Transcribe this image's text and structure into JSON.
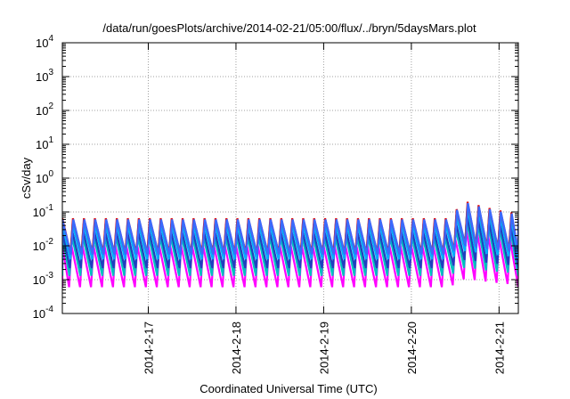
{
  "chart_data": {
    "type": "line",
    "title": "/data/run/goesPlots/archive/2014-02-21/05:00/flux/../bryn/5daysMars.plot",
    "xlabel": "Coordinated Universal Time (UTC)",
    "ylabel": "cSv/day",
    "x_tick_labels": [
      "2014-2-17",
      "2014-2-18",
      "2014-2-19",
      "2014-2-20",
      "2014-2-21"
    ],
    "y_tick_labels": [
      {
        "base": "10",
        "exp": "4"
      },
      {
        "base": "10",
        "exp": "3"
      },
      {
        "base": "10",
        "exp": "2"
      },
      {
        "base": "10",
        "exp": "1"
      },
      {
        "base": "10",
        "exp": "0"
      },
      {
        "base": "10",
        "exp": "-1"
      },
      {
        "base": "10",
        "exp": "-2"
      },
      {
        "base": "10",
        "exp": "-3"
      },
      {
        "base": "10",
        "exp": "-4"
      }
    ],
    "y_scale": "log",
    "ylim": [
      0.0001,
      10000
    ],
    "xlim_days": [
      -0.98,
      4.22
    ],
    "x_tick_days": [
      0,
      1,
      2,
      3,
      4
    ],
    "grid": true,
    "cycle_period_days": 0.125,
    "series": [
      {
        "color": "#ff00ff",
        "peak": 0.01,
        "trough": 0.0006
      },
      {
        "color": "#00bfbf",
        "peak": 0.02,
        "trough": 0.0013
      },
      {
        "color": "#1f3fbf",
        "peak": 0.028,
        "trough": 0.0022
      },
      {
        "color": "#00aeff",
        "peak": 0.045,
        "trough": 0.004
      },
      {
        "color": "#e01010",
        "peak": 0.065,
        "trough": 0.006
      },
      {
        "color": "#3a6aff",
        "peak": 0.06,
        "trough": 0.0055
      }
    ],
    "event": {
      "start_day": 3.45,
      "end_day": 4.22,
      "peak_factor": 3.2
    }
  }
}
